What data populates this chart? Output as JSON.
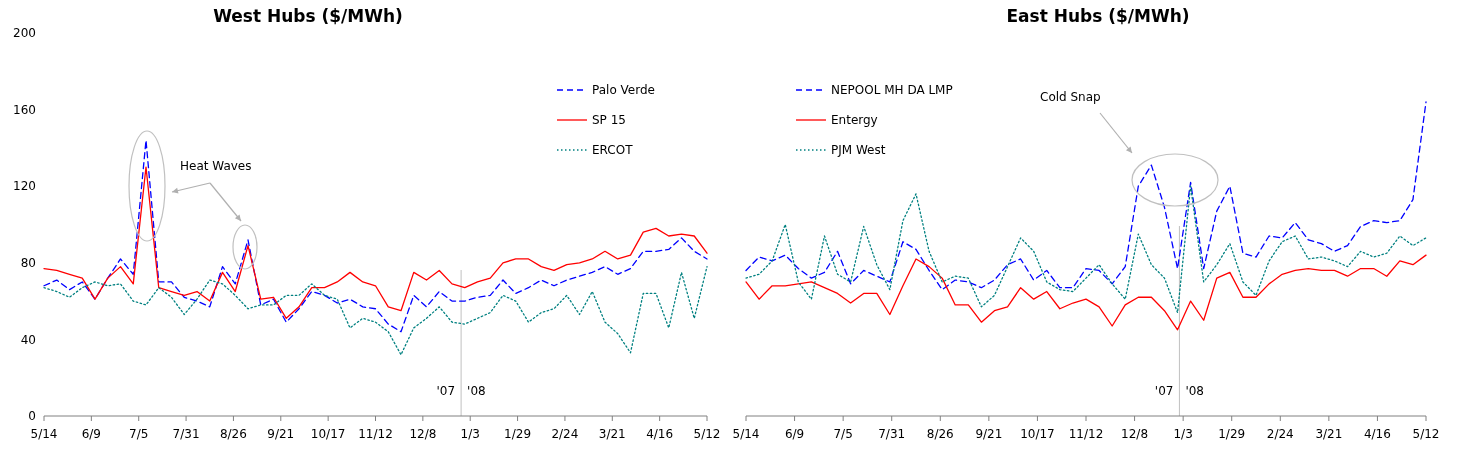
{
  "chart_data": [
    {
      "type": "line",
      "title": "West Hubs ($/MWh)",
      "x": [
        "2007-05-14",
        "2007-05-21",
        "2007-05-28",
        "2007-06-04",
        "2007-06-11",
        "2007-06-18",
        "2007-06-25",
        "2007-07-02",
        "2007-07-09",
        "2007-07-16",
        "2007-07-23",
        "2007-07-30",
        "2007-08-06",
        "2007-08-13",
        "2007-08-20",
        "2007-08-27",
        "2007-09-03",
        "2007-09-10",
        "2007-09-17",
        "2007-09-24",
        "2007-10-01",
        "2007-10-08",
        "2007-10-15",
        "2007-10-22",
        "2007-10-29",
        "2007-11-05",
        "2007-11-12",
        "2007-11-19",
        "2007-11-26",
        "2007-12-03",
        "2007-12-10",
        "2007-12-17",
        "2007-12-24",
        "2007-12-31",
        "2008-01-07",
        "2008-01-14",
        "2008-01-21",
        "2008-01-28",
        "2008-02-04",
        "2008-02-11",
        "2008-02-18",
        "2008-02-25",
        "2008-03-03",
        "2008-03-10",
        "2008-03-17",
        "2008-03-24",
        "2008-03-31",
        "2008-04-07",
        "2008-04-14",
        "2008-04-21",
        "2008-04-28",
        "2008-05-05",
        "2008-05-12"
      ],
      "series": [
        {
          "name": "Palo Verde",
          "color": "#0000ff",
          "line_style": "dashed",
          "values": [
            68,
            71,
            66,
            70,
            61,
            72,
            82,
            74,
            144,
            70,
            70,
            62,
            60,
            57,
            78,
            69,
            92,
            58,
            61,
            49,
            56,
            65,
            63,
            59,
            61,
            57,
            56,
            48,
            44,
            63,
            57,
            65,
            60,
            60,
            62,
            63,
            71,
            64,
            67,
            71,
            68,
            71,
            73,
            75,
            78,
            74,
            77,
            86,
            86,
            87,
            93,
            86,
            82
          ]
        },
        {
          "name": "SP 15",
          "color": "#ff0000",
          "line_style": "solid",
          "values": [
            77,
            76,
            74,
            72,
            61,
            72,
            78,
            69,
            130,
            67,
            65,
            63,
            65,
            60,
            75,
            65,
            89,
            61,
            62,
            51,
            57,
            67,
            67,
            70,
            75,
            70,
            68,
            57,
            55,
            75,
            71,
            76,
            69,
            67,
            70,
            72,
            80,
            82,
            82,
            78,
            76,
            79,
            80,
            82,
            86,
            82,
            84,
            96,
            98,
            94,
            95,
            94,
            85
          ]
        },
        {
          "name": "ERCOT",
          "color": "#008080",
          "line_style": "dotted",
          "values": [
            67,
            65,
            62,
            67,
            70,
            68,
            69,
            60,
            58,
            67,
            62,
            53,
            61,
            71,
            69,
            63,
            56,
            58,
            58,
            63,
            63,
            69,
            63,
            61,
            46,
            51,
            49,
            44,
            32,
            46,
            51,
            57,
            49,
            48,
            51,
            54,
            63,
            60,
            49,
            54,
            56,
            63,
            53,
            65,
            49,
            43,
            33,
            64,
            64,
            46,
            75,
            51,
            78
          ]
        }
      ],
      "xlim": [
        "2007-05-14",
        "2008-05-12"
      ],
      "xticks": [
        {
          "value": "2007-05-14",
          "label": "5/14"
        },
        {
          "value": "2007-06-09",
          "label": "6/9"
        },
        {
          "value": "2007-07-05",
          "label": "7/5"
        },
        {
          "value": "2007-07-31",
          "label": "7/31"
        },
        {
          "value": "2007-08-26",
          "label": "8/26"
        },
        {
          "value": "2007-09-21",
          "label": "9/21"
        },
        {
          "value": "2007-10-17",
          "label": "10/17"
        },
        {
          "value": "2007-11-12",
          "label": "11/12"
        },
        {
          "value": "2007-12-08",
          "label": "12/8"
        },
        {
          "value": "2008-01-03",
          "label": "1/3"
        },
        {
          "value": "2008-01-29",
          "label": "1/29"
        },
        {
          "value": "2008-02-24",
          "label": "2/24"
        },
        {
          "value": "2008-03-21",
          "label": "3/21"
        },
        {
          "value": "2008-04-16",
          "label": "4/16"
        },
        {
          "value": "2008-05-12",
          "label": "5/12"
        }
      ],
      "ylim": [
        0,
        200
      ],
      "yticks": [
        0,
        40,
        80,
        120,
        160,
        200
      ],
      "ref_lines": [
        {
          "axis": "x",
          "value": "2007-12-29",
          "label": null,
          "color": "#c0c0c0"
        }
      ],
      "annotations": [
        "Heat Waves",
        "'07",
        "'08"
      ],
      "legend": "top right",
      "grid": false
    },
    {
      "type": "line",
      "title": "East Hubs ($/MWh)",
      "x": [
        "2007-05-14",
        "2007-05-21",
        "2007-05-28",
        "2007-06-04",
        "2007-06-11",
        "2007-06-18",
        "2007-06-25",
        "2007-07-02",
        "2007-07-09",
        "2007-07-16",
        "2007-07-23",
        "2007-07-30",
        "2007-08-06",
        "2007-08-13",
        "2007-08-20",
        "2007-08-27",
        "2007-09-03",
        "2007-09-10",
        "2007-09-17",
        "2007-09-24",
        "2007-10-01",
        "2007-10-08",
        "2007-10-15",
        "2007-10-22",
        "2007-10-29",
        "2007-11-05",
        "2007-11-12",
        "2007-11-19",
        "2007-11-26",
        "2007-12-03",
        "2007-12-10",
        "2007-12-17",
        "2007-12-24",
        "2007-12-31",
        "2008-01-07",
        "2008-01-14",
        "2008-01-21",
        "2008-01-28",
        "2008-02-04",
        "2008-02-11",
        "2008-02-18",
        "2008-02-25",
        "2008-03-03",
        "2008-03-10",
        "2008-03-17",
        "2008-03-24",
        "2008-03-31",
        "2008-04-07",
        "2008-04-14",
        "2008-04-21",
        "2008-04-28",
        "2008-05-05",
        "2008-05-12"
      ],
      "series": [
        {
          "name": "NEPOOL MH DA LMP",
          "color": "#0000ff",
          "line_style": "dashed",
          "values": [
            76,
            83,
            81,
            84,
            77,
            72,
            75,
            86,
            69,
            76,
            73,
            70,
            91,
            87,
            76,
            66,
            71,
            70,
            67,
            71,
            79,
            82,
            71,
            76,
            67,
            67,
            77,
            76,
            69,
            78,
            120,
            131,
            109,
            77,
            122,
            77,
            107,
            120,
            85,
            83,
            94,
            93,
            101,
            92,
            90,
            86,
            89,
            99,
            102,
            101,
            102,
            113,
            164
          ]
        },
        {
          "name": "Entergy",
          "color": "#ff0000",
          "line_style": "solid",
          "values": [
            70,
            61,
            68,
            68,
            69,
            70,
            67,
            64,
            59,
            64,
            64,
            53,
            68,
            82,
            78,
            72,
            58,
            58,
            49,
            55,
            57,
            67,
            61,
            65,
            56,
            59,
            61,
            57,
            47,
            58,
            62,
            62,
            55,
            45,
            60,
            50,
            72,
            75,
            62,
            62,
            69,
            74,
            76,
            77,
            76,
            76,
            73,
            77,
            77,
            73,
            81,
            79,
            84
          ]
        },
        {
          "name": "PJM West",
          "color": "#008080",
          "line_style": "dotted",
          "values": [
            72,
            74,
            81,
            100,
            70,
            61,
            94,
            74,
            70,
            99,
            79,
            66,
            102,
            116,
            86,
            70,
            73,
            72,
            57,
            63,
            78,
            93,
            86,
            70,
            66,
            65,
            72,
            79,
            69,
            61,
            95,
            79,
            72,
            54,
            120,
            70,
            79,
            90,
            70,
            63,
            81,
            91,
            94,
            82,
            83,
            81,
            78,
            86,
            83,
            85,
            94,
            89,
            93
          ]
        }
      ],
      "xlim": [
        "2007-05-14",
        "2008-05-12"
      ],
      "xticks": [
        {
          "value": "2007-05-14",
          "label": "5/14"
        },
        {
          "value": "2007-06-09",
          "label": "6/9"
        },
        {
          "value": "2007-07-05",
          "label": "7/5"
        },
        {
          "value": "2007-07-31",
          "label": "7/31"
        },
        {
          "value": "2007-08-26",
          "label": "8/26"
        },
        {
          "value": "2007-09-21",
          "label": "9/21"
        },
        {
          "value": "2007-10-17",
          "label": "10/17"
        },
        {
          "value": "2007-11-12",
          "label": "11/12"
        },
        {
          "value": "2007-12-08",
          "label": "12/8"
        },
        {
          "value": "2008-01-03",
          "label": "1/3"
        },
        {
          "value": "2008-01-29",
          "label": "1/29"
        },
        {
          "value": "2008-02-24",
          "label": "2/24"
        },
        {
          "value": "2008-03-21",
          "label": "3/21"
        },
        {
          "value": "2008-04-16",
          "label": "4/16"
        },
        {
          "value": "2008-05-12",
          "label": "5/12"
        }
      ],
      "ylim": [
        0,
        200
      ],
      "yticks": [
        0,
        40,
        80,
        120,
        160,
        200
      ],
      "tick_labels": "x",
      "ref_lines": [
        {
          "axis": "x",
          "value": "2008-01-01",
          "label": null,
          "color": "#c0c0c0"
        }
      ],
      "annotations": [
        "Cold Snap",
        "'07",
        "'08"
      ],
      "legend": "top left",
      "grid": false
    }
  ]
}
